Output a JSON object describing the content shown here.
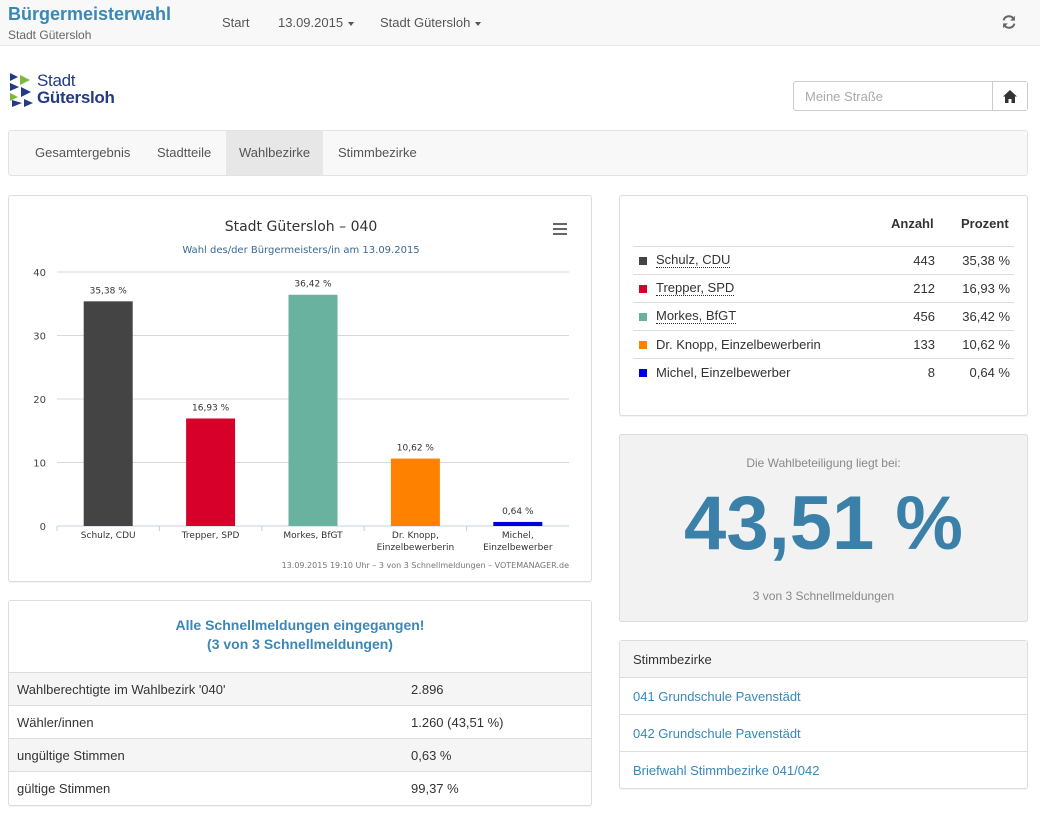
{
  "navbar": {
    "title": "Bürgermeisterwahl",
    "subtitle": "Stadt Gütersloh",
    "start_label": "Start",
    "date_label": "13.09.2015",
    "city_label": "Stadt Gütersloh",
    "refresh_icon": "refresh-icon"
  },
  "logo": {
    "line1": "Stadt",
    "line2": "Gütersloh"
  },
  "search": {
    "placeholder": "Meine Straße",
    "value": "",
    "home_icon": "home-icon"
  },
  "tabs": [
    {
      "label": "Gesamtergebnis",
      "active": false
    },
    {
      "label": "Stadtteile",
      "active": false
    },
    {
      "label": "Wahlbezirke",
      "active": true
    },
    {
      "label": "Stimmbezirke",
      "active": false
    }
  ],
  "chart": {
    "menu_icon": "menu-icon",
    "credit": "13.09.2015 19:10 Uhr – 3 von 3 Schnellmeldungen – VOTEMANAGER.de"
  },
  "chart_data": {
    "type": "bar",
    "title": "Stadt Gütersloh – 040",
    "subtitle": "Wahl des/der Bürgermeisters/in am 13.09.2015",
    "xlabel": "",
    "ylabel": "",
    "ylim": [
      0,
      40
    ],
    "yticks": [
      0,
      10,
      20,
      30,
      40
    ],
    "grid": true,
    "categories": [
      [
        "Schulz, CDU"
      ],
      [
        "Trepper, SPD"
      ],
      [
        "Morkes, BfGT"
      ],
      [
        "Dr. Knopp,",
        "Einzelbewerberin"
      ],
      [
        "Michel,",
        "Einzelbewerber"
      ]
    ],
    "values": [
      35.38,
      16.93,
      36.42,
      10.62,
      0.64
    ],
    "data_labels": [
      "35,38 %",
      "16,93 %",
      "36,42 %",
      "10,62 %",
      "0,64 %"
    ],
    "colors": [
      "#444444",
      "#d7002a",
      "#6ab2a0",
      "#ff8100",
      "#0000dd"
    ]
  },
  "status": {
    "line1": "Alle Schnellmeldungen eingegangen!",
    "line2": "(3 von 3 Schnellmeldungen)",
    "rows": [
      {
        "label": "Wahlberechtigte im Wahlbezirk '040'",
        "value": "2.896"
      },
      {
        "label": "Wähler/innen",
        "value": "1.260 (43,51 %)"
      },
      {
        "label": "ungültige Stimmen",
        "value": "0,63 %"
      },
      {
        "label": "gültige Stimmen",
        "value": "99,37 %"
      }
    ]
  },
  "results": {
    "col_count": "Anzahl",
    "col_percent": "Prozent",
    "rows": [
      {
        "name": "Schulz, CDU",
        "count": "443",
        "percent": "35,38 %",
        "color": "#444444",
        "dotted": true
      },
      {
        "name": "Trepper, SPD",
        "count": "212",
        "percent": "16,93 %",
        "color": "#d7002a",
        "dotted": true
      },
      {
        "name": "Morkes, BfGT",
        "count": "456",
        "percent": "36,42 %",
        "color": "#6ab2a0",
        "dotted": true
      },
      {
        "name": "Dr. Knopp, Einzelbewerberin",
        "count": "133",
        "percent": "10,62 %",
        "color": "#ff8100",
        "dotted": false
      },
      {
        "name": "Michel, Einzelbewerber",
        "count": "8",
        "percent": "0,64 %",
        "color": "#0000dd",
        "dotted": false
      }
    ]
  },
  "turnout": {
    "label": "Die Wahlbeteiligung liegt bei:",
    "value": "43,51 %",
    "meta": "3 von 3 Schnellmeldungen"
  },
  "districts": {
    "header": "Stimmbezirke",
    "items": [
      "041 Grundschule Pavenstädt",
      "042 Grundschule Pavenstädt",
      "Briefwahl Stimmbezirke 041/042"
    ]
  }
}
